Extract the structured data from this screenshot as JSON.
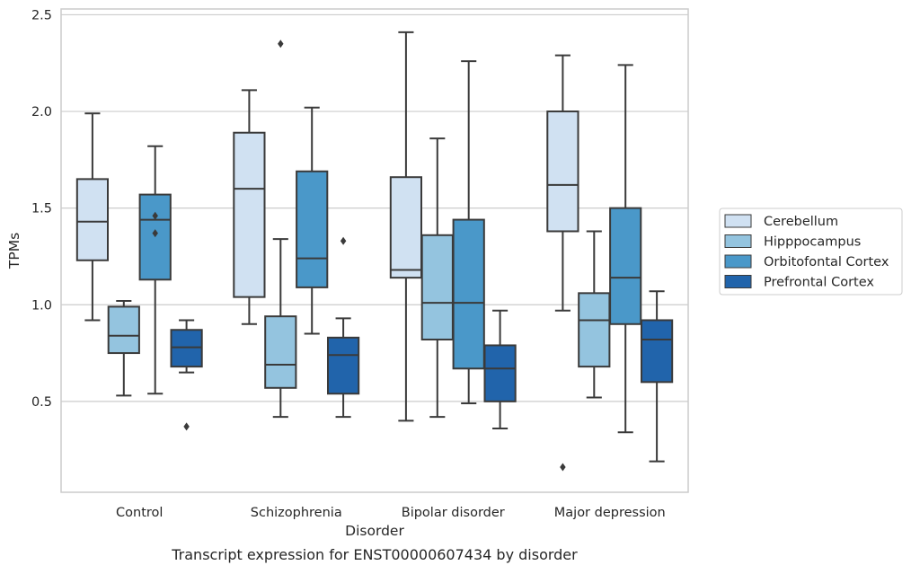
{
  "chart_data": {
    "type": "boxplot",
    "xlabel": "Disorder",
    "ylabel": "TPMs",
    "caption": "Transcript expression for ENST00000607434 by disorder",
    "categories": [
      "Control",
      "Schizophrenia",
      "Bipolar disorder",
      "Major depression"
    ],
    "ylim": [
      0.03,
      2.53
    ],
    "y_ticks": [
      0.5,
      1.0,
      1.5,
      2.0,
      2.5
    ],
    "y_tick_labels": [
      "0.5",
      "1.0",
      "1.5",
      "2.0",
      "2.5"
    ],
    "grid": "horizontal",
    "legend_position": "right",
    "series": [
      {
        "name": "Cerebellum",
        "color": "#d0e1f2",
        "boxes": [
          {
            "whisker_low": 0.92,
            "q1": 1.23,
            "median": 1.43,
            "q3": 1.65,
            "whisker_high": 1.99,
            "outliers": []
          },
          {
            "whisker_low": 0.9,
            "q1": 1.04,
            "median": 1.6,
            "q3": 1.89,
            "whisker_high": 2.11,
            "outliers": []
          },
          {
            "whisker_low": 0.4,
            "q1": 1.14,
            "median": 1.18,
            "q3": 1.66,
            "whisker_high": 2.41,
            "outliers": []
          },
          {
            "whisker_low": 0.97,
            "q1": 1.38,
            "median": 1.62,
            "q3": 2.0,
            "whisker_high": 2.29,
            "outliers": [
              0.16
            ]
          }
        ]
      },
      {
        "name": "Hipppocampus",
        "color": "#94c4df",
        "boxes": [
          {
            "whisker_low": 0.53,
            "q1": 0.75,
            "median": 0.84,
            "q3": 0.99,
            "whisker_high": 1.02,
            "outliers": []
          },
          {
            "whisker_low": 0.42,
            "q1": 0.57,
            "median": 0.69,
            "q3": 0.94,
            "whisker_high": 1.34,
            "outliers": [
              2.35
            ]
          },
          {
            "whisker_low": 0.42,
            "q1": 0.82,
            "median": 1.01,
            "q3": 1.36,
            "whisker_high": 1.86,
            "outliers": []
          },
          {
            "whisker_low": 0.52,
            "q1": 0.68,
            "median": 0.92,
            "q3": 1.06,
            "whisker_high": 1.38,
            "outliers": []
          }
        ]
      },
      {
        "name": "Orbitofontal Cortex",
        "color": "#4a98c9",
        "boxes": [
          {
            "whisker_low": 0.54,
            "q1": 1.13,
            "median": 1.44,
            "q3": 1.57,
            "whisker_high": 1.82,
            "outliers": [
              1.46,
              1.37
            ]
          },
          {
            "whisker_low": 0.85,
            "q1": 1.09,
            "median": 1.24,
            "q3": 1.69,
            "whisker_high": 2.02,
            "outliers": []
          },
          {
            "whisker_low": 0.49,
            "q1": 0.67,
            "median": 1.01,
            "q3": 1.44,
            "whisker_high": 2.26,
            "outliers": []
          },
          {
            "whisker_low": 0.34,
            "q1": 0.9,
            "median": 1.14,
            "q3": 1.5,
            "whisker_high": 2.24,
            "outliers": []
          }
        ]
      },
      {
        "name": "Prefrontal Cortex",
        "color": "#2164ab",
        "boxes": [
          {
            "whisker_low": 0.65,
            "q1": 0.68,
            "median": 0.78,
            "q3": 0.87,
            "whisker_high": 0.92,
            "outliers": [
              0.37
            ]
          },
          {
            "whisker_low": 0.42,
            "q1": 0.54,
            "median": 0.74,
            "q3": 0.83,
            "whisker_high": 0.93,
            "outliers": [
              1.33
            ]
          },
          {
            "whisker_low": 0.36,
            "q1": 0.5,
            "median": 0.67,
            "q3": 0.79,
            "whisker_high": 0.97,
            "outliers": []
          },
          {
            "whisker_low": 0.19,
            "q1": 0.6,
            "median": 0.82,
            "q3": 0.92,
            "whisker_high": 1.07,
            "outliers": []
          }
        ]
      }
    ]
  }
}
